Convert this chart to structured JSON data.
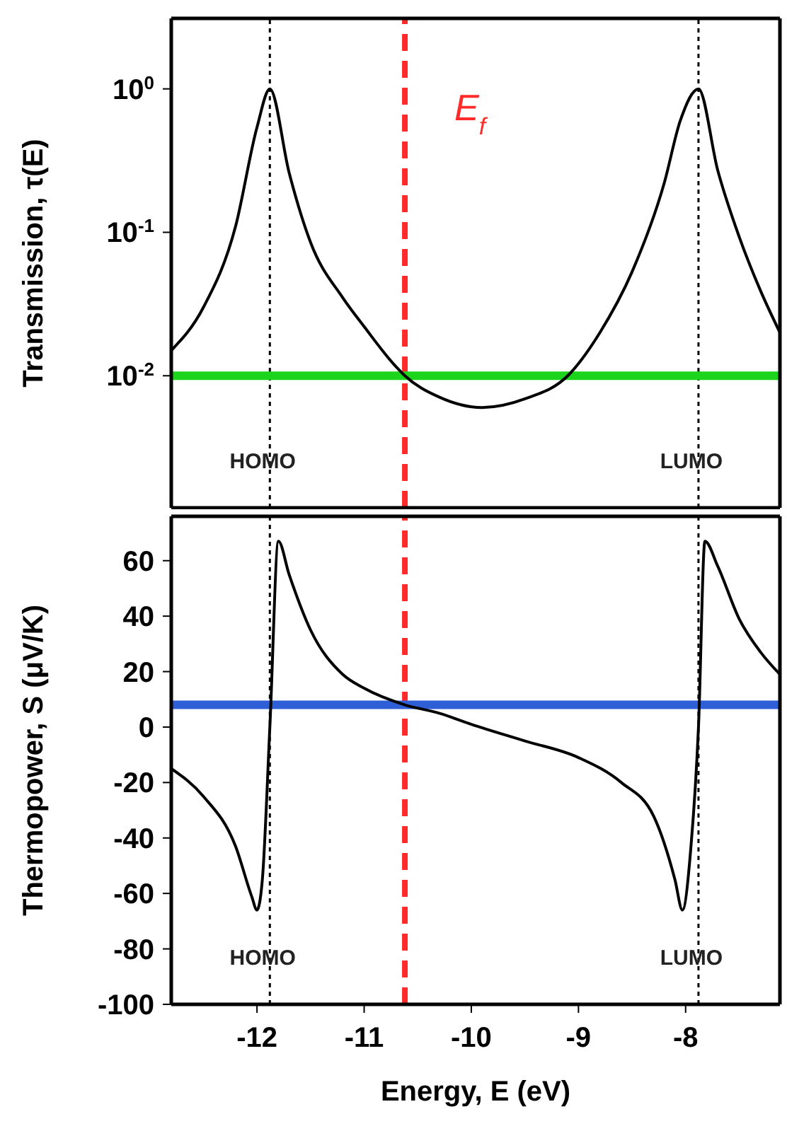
{
  "chart_data": [
    {
      "type": "line",
      "ylabel": "Transmission, τ(E)",
      "log": "y",
      "xlim": [
        -12.8,
        -7.12
      ],
      "xticks": [
        -12,
        -11,
        -10,
        -9,
        -8
      ],
      "ylim": [
        0.0012,
        3.1
      ],
      "yticks": [
        {
          "value": 0.01,
          "label": "10$^{-2}$"
        },
        {
          "value": 0.1,
          "label": "10$^{-1}$"
        },
        {
          "value": 1,
          "label": "10$^{0}$"
        }
      ],
      "tick_labels": "y",
      "marker": "none",
      "line_style": "solid",
      "series": [
        {
          "color": "#000000",
          "x": [
            -12.8,
            -12.5,
            -12.2,
            -12.0,
            -11.88,
            -11.7,
            -11.5,
            -11.2,
            -11.0,
            -10.7,
            -10.62,
            -10.3,
            -9.9,
            -9.5,
            -9.1,
            -8.8,
            -8.5,
            -8.2,
            -8.05,
            -7.88,
            -7.7,
            -7.5,
            -7.3,
            -7.12
          ],
          "values": [
            0.015,
            0.03,
            0.11,
            0.54,
            1.0,
            0.26,
            0.085,
            0.035,
            0.022,
            0.0115,
            0.01,
            0.0071,
            0.006,
            0.0069,
            0.01,
            0.02,
            0.053,
            0.22,
            0.6,
            1.0,
            0.27,
            0.093,
            0.039,
            0.02
          ]
        }
      ],
      "ref_lines": [
        {
          "axis": "x",
          "value": -10.62,
          "label": "E$_{f}$",
          "color": "#ff2a2a",
          "line_style": "dashed"
        },
        {
          "axis": "x",
          "value": -11.88,
          "label": "HOMO",
          "color": "#000000",
          "line_style": "dotted"
        },
        {
          "axis": "x",
          "value": -7.88,
          "label": "LUMO",
          "color": "#000000",
          "line_style": "dotted"
        },
        {
          "axis": "y",
          "value": 0.01,
          "color": "#1bd41b",
          "line_style": "solid"
        }
      ]
    },
    {
      "type": "line",
      "xlabel": "Energy, E (eV)",
      "ylabel": "Thermopower, S (μV/K)",
      "xlim": [
        -12.8,
        -7.12
      ],
      "xticks": [
        -12,
        -11,
        -10,
        -9,
        -8
      ],
      "ylim": [
        -100,
        76
      ],
      "yticks": [
        -100,
        -80,
        -60,
        -40,
        -20,
        0,
        20,
        40,
        60
      ],
      "marker": "none",
      "line_style": "solid",
      "series": [
        {
          "color": "#000000",
          "x": [
            -12.8,
            -12.5,
            -12.2,
            -12.05,
            -12.0,
            -11.95,
            -11.88,
            -11.8,
            -11.7,
            -11.5,
            -11.2,
            -11.0,
            -10.62,
            -10.3,
            -10.0,
            -9.5,
            -9.0,
            -8.6,
            -8.3,
            -8.1,
            -8.03,
            -7.95,
            -7.88,
            -7.82,
            -7.7,
            -7.5,
            -7.3,
            -7.12
          ],
          "values": [
            -15,
            -25,
            -43,
            -61,
            -66,
            -55,
            0,
            67,
            55,
            35,
            19,
            14,
            8,
            5,
            1,
            -5,
            -11,
            -20,
            -32,
            -55,
            -66,
            -43,
            0,
            67,
            58,
            39,
            27,
            19
          ]
        }
      ],
      "ref_lines": [
        {
          "axis": "x",
          "value": -10.62,
          "color": "#ff2a2a",
          "line_style": "dashed"
        },
        {
          "axis": "x",
          "value": -11.88,
          "label": "HOMO",
          "color": "#000000",
          "line_style": "dotted"
        },
        {
          "axis": "x",
          "value": -7.88,
          "label": "LUMO",
          "color": "#000000",
          "line_style": "dotted"
        },
        {
          "axis": "y",
          "value": 8,
          "color": "#2f5fd6",
          "line_style": "solid"
        }
      ]
    }
  ]
}
